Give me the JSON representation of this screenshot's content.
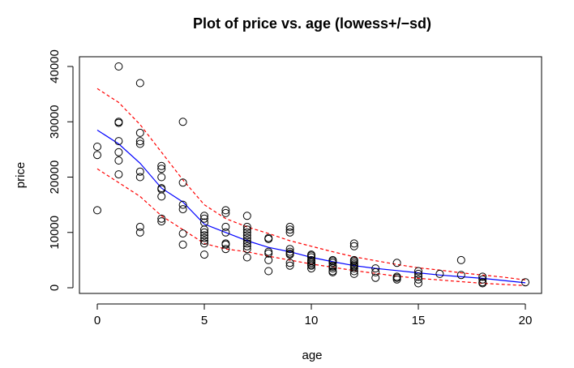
{
  "chart_data": {
    "type": "scatter",
    "title": "Plot of price vs. age   (lowess+/−sd)",
    "xlabel": "age",
    "ylabel": "price",
    "xlim": [
      0,
      20
    ],
    "ylim": [
      0,
      40000
    ],
    "xticks": [
      0,
      5,
      10,
      15,
      20
    ],
    "yticks": [
      0,
      10000,
      20000,
      30000,
      40000
    ],
    "grid": false,
    "points": [
      [
        0,
        25500
      ],
      [
        0,
        24000
      ],
      [
        0,
        14000
      ],
      [
        1,
        40000
      ],
      [
        1,
        30000
      ],
      [
        1,
        29800
      ],
      [
        1,
        26500
      ],
      [
        1,
        24500
      ],
      [
        1,
        23000
      ],
      [
        1,
        20500
      ],
      [
        2,
        37000
      ],
      [
        2,
        28000
      ],
      [
        2,
        26500
      ],
      [
        2,
        26000
      ],
      [
        2,
        21000
      ],
      [
        2,
        20000
      ],
      [
        2,
        11000
      ],
      [
        2,
        10000
      ],
      [
        3,
        22000
      ],
      [
        3,
        21500
      ],
      [
        3,
        20000
      ],
      [
        3,
        18000
      ],
      [
        3,
        17800
      ],
      [
        3,
        16500
      ],
      [
        3,
        12500
      ],
      [
        3,
        12000
      ],
      [
        4,
        30000
      ],
      [
        4,
        19000
      ],
      [
        4,
        15000
      ],
      [
        4,
        14200
      ],
      [
        4,
        9800
      ],
      [
        4,
        7800
      ],
      [
        5,
        13000
      ],
      [
        5,
        12500
      ],
      [
        5,
        11800
      ],
      [
        5,
        10500
      ],
      [
        5,
        10000
      ],
      [
        5,
        9500
      ],
      [
        5,
        9000
      ],
      [
        5,
        8500
      ],
      [
        5,
        8000
      ],
      [
        5,
        6000
      ],
      [
        6,
        14000
      ],
      [
        6,
        13500
      ],
      [
        6,
        11000
      ],
      [
        6,
        10000
      ],
      [
        6,
        8000
      ],
      [
        6,
        7800
      ],
      [
        6,
        7000
      ],
      [
        7,
        13000
      ],
      [
        7,
        11000
      ],
      [
        7,
        10500
      ],
      [
        7,
        10000
      ],
      [
        7,
        9500
      ],
      [
        7,
        9000
      ],
      [
        7,
        8500
      ],
      [
        7,
        8000
      ],
      [
        7,
        7500
      ],
      [
        7,
        7000
      ],
      [
        7,
        5500
      ],
      [
        8,
        9000
      ],
      [
        8,
        8800
      ],
      [
        8,
        6500
      ],
      [
        8,
        6200
      ],
      [
        8,
        5000
      ],
      [
        8,
        3000
      ],
      [
        9,
        11000
      ],
      [
        9,
        10500
      ],
      [
        9,
        10000
      ],
      [
        9,
        7000
      ],
      [
        9,
        6500
      ],
      [
        9,
        6200
      ],
      [
        9,
        6000
      ],
      [
        9,
        4500
      ],
      [
        9,
        4000
      ],
      [
        10,
        6000
      ],
      [
        10,
        5800
      ],
      [
        10,
        5500
      ],
      [
        10,
        5000
      ],
      [
        10,
        4800
      ],
      [
        10,
        4500
      ],
      [
        10,
        4200
      ],
      [
        10,
        4000
      ],
      [
        10,
        3500
      ],
      [
        11,
        5000
      ],
      [
        11,
        4800
      ],
      [
        11,
        4500
      ],
      [
        11,
        4000
      ],
      [
        11,
        3800
      ],
      [
        11,
        3500
      ],
      [
        11,
        3000
      ],
      [
        11,
        2800
      ],
      [
        12,
        8000
      ],
      [
        12,
        7500
      ],
      [
        12,
        5000
      ],
      [
        12,
        4800
      ],
      [
        12,
        4500
      ],
      [
        12,
        4200
      ],
      [
        12,
        4000
      ],
      [
        12,
        3800
      ],
      [
        12,
        3500
      ],
      [
        12,
        3000
      ],
      [
        12,
        2500
      ],
      [
        13,
        3500
      ],
      [
        13,
        2800
      ],
      [
        13,
        1800
      ],
      [
        14,
        4500
      ],
      [
        14,
        2000
      ],
      [
        14,
        1800
      ],
      [
        14,
        1500
      ],
      [
        15,
        3000
      ],
      [
        15,
        2500
      ],
      [
        15,
        2000
      ],
      [
        15,
        1500
      ],
      [
        15,
        800
      ],
      [
        16,
        2500
      ],
      [
        17,
        5000
      ],
      [
        17,
        2300
      ],
      [
        18,
        2000
      ],
      [
        18,
        1500
      ],
      [
        18,
        1000
      ],
      [
        18,
        800
      ],
      [
        20,
        1000
      ]
    ],
    "series": [
      {
        "color": "#0000ff",
        "style": "solid",
        "x": [
          0,
          1,
          2,
          3,
          4,
          5,
          6,
          7,
          8,
          9,
          10,
          11,
          12,
          13,
          14,
          15,
          16,
          17,
          18,
          19,
          20
        ],
        "y": [
          28500,
          26000,
          22500,
          18000,
          15500,
          11500,
          10000,
          8500,
          7300,
          6500,
          5500,
          4700,
          4000,
          3500,
          3100,
          2700,
          2300,
          2000,
          1700,
          1300,
          900
        ]
      },
      {
        "color": "#ff0000",
        "style": "dashed",
        "x": [
          0,
          1,
          2,
          3,
          4,
          5,
          6,
          7,
          8,
          9,
          10,
          11,
          12,
          13,
          14,
          15,
          16,
          17,
          18,
          19,
          20
        ],
        "y": [
          36000,
          33500,
          29500,
          24500,
          19500,
          15000,
          12500,
          11000,
          9800,
          8500,
          7500,
          6500,
          5600,
          4900,
          4200,
          3600,
          3200,
          2700,
          2300,
          1900,
          1400
        ]
      },
      {
        "color": "#ff0000",
        "style": "dashed",
        "x": [
          0,
          1,
          2,
          3,
          4,
          5,
          6,
          7,
          8,
          9,
          10,
          11,
          12,
          13,
          14,
          15,
          16,
          17,
          18,
          19,
          20
        ],
        "y": [
          21500,
          19000,
          16500,
          13000,
          10500,
          8000,
          7000,
          6500,
          5700,
          5000,
          4300,
          3700,
          3100,
          2600,
          2100,
          1700,
          1400,
          1100,
          800,
          600,
          400
        ]
      }
    ]
  }
}
